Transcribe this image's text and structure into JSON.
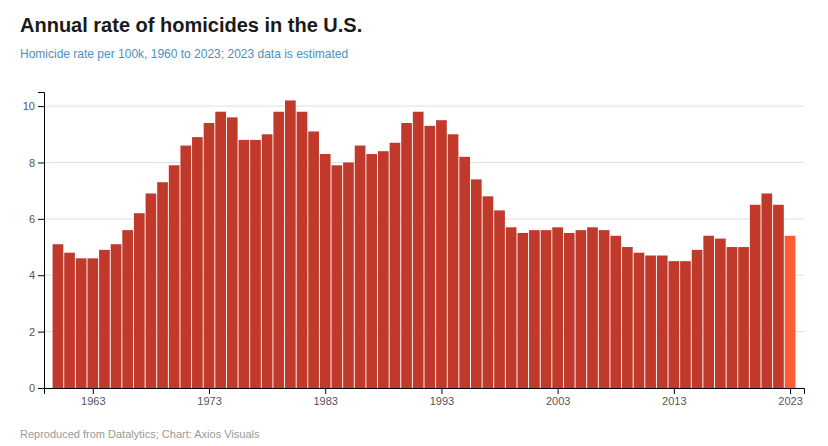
{
  "chart_data": {
    "type": "bar",
    "title": "Annual rate of homicides in the U.S.",
    "subtitle": "Homicide rate per 100k, 1960 to 2023; 2023 data is estimated",
    "annotations": [
      "Reproduced from Datalytics; Chart: Axios Visuals"
    ],
    "x": [
      1960,
      1961,
      1962,
      1963,
      1964,
      1965,
      1966,
      1967,
      1968,
      1969,
      1970,
      1971,
      1972,
      1973,
      1974,
      1975,
      1976,
      1977,
      1978,
      1979,
      1980,
      1981,
      1982,
      1983,
      1984,
      1985,
      1986,
      1987,
      1988,
      1989,
      1990,
      1991,
      1992,
      1993,
      1994,
      1995,
      1996,
      1997,
      1998,
      1999,
      2000,
      2001,
      2002,
      2003,
      2004,
      2005,
      2006,
      2007,
      2008,
      2009,
      2010,
      2011,
      2012,
      2013,
      2014,
      2015,
      2016,
      2017,
      2018,
      2019,
      2020,
      2021,
      2022,
      2023
    ],
    "values": [
      5.1,
      4.8,
      4.6,
      4.6,
      4.9,
      5.1,
      5.6,
      6.2,
      6.9,
      7.3,
      7.9,
      8.6,
      8.9,
      9.4,
      9.8,
      9.6,
      8.8,
      8.8,
      9.0,
      9.8,
      10.2,
      9.8,
      9.1,
      8.3,
      7.9,
      8.0,
      8.6,
      8.3,
      8.4,
      8.7,
      9.4,
      9.8,
      9.3,
      9.5,
      9.0,
      8.2,
      7.4,
      6.8,
      6.3,
      5.7,
      5.5,
      5.6,
      5.6,
      5.7,
      5.5,
      5.6,
      5.7,
      5.6,
      5.4,
      5.0,
      4.8,
      4.7,
      4.7,
      4.5,
      4.5,
      4.9,
      5.4,
      5.3,
      5.0,
      5.0,
      6.5,
      6.9,
      6.5,
      5.4
    ],
    "colors": [
      "#c0392b",
      "#c0392b",
      "#c0392b",
      "#c0392b",
      "#c0392b",
      "#c0392b",
      "#c0392b",
      "#c0392b",
      "#c0392b",
      "#c0392b",
      "#c0392b",
      "#c0392b",
      "#c0392b",
      "#c0392b",
      "#c0392b",
      "#c0392b",
      "#c0392b",
      "#c0392b",
      "#c0392b",
      "#c0392b",
      "#c0392b",
      "#c0392b",
      "#c0392b",
      "#c0392b",
      "#c0392b",
      "#c0392b",
      "#c0392b",
      "#c0392b",
      "#c0392b",
      "#c0392b",
      "#c0392b",
      "#c0392b",
      "#c0392b",
      "#c0392b",
      "#c0392b",
      "#c0392b",
      "#c0392b",
      "#c0392b",
      "#c0392b",
      "#c0392b",
      "#c0392b",
      "#c0392b",
      "#c0392b",
      "#c0392b",
      "#c0392b",
      "#c0392b",
      "#c0392b",
      "#c0392b",
      "#c0392b",
      "#c0392b",
      "#c0392b",
      "#c0392b",
      "#c0392b",
      "#c0392b",
      "#c0392b",
      "#c0392b",
      "#c0392b",
      "#c0392b",
      "#c0392b",
      "#c0392b",
      "#c0392b",
      "#c0392b",
      "#c0392b",
      "#ff5c33"
    ],
    "xlim": [
      1958.8,
      2024.2
    ],
    "xticks": [
      1963,
      1973,
      1983,
      1993,
      2003,
      2013,
      2023
    ],
    "ylim": [
      0,
      10.5
    ],
    "yticks": [
      0,
      2,
      4,
      6,
      8,
      10
    ],
    "grid": true
  }
}
